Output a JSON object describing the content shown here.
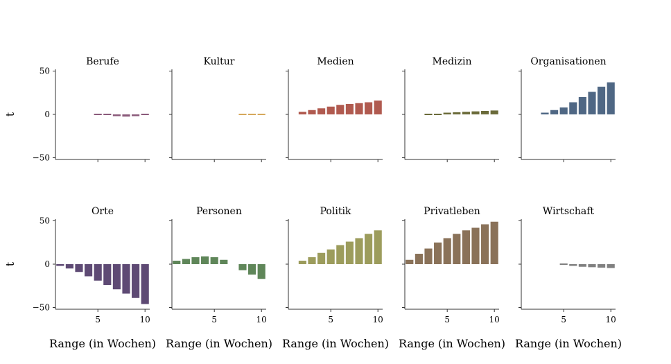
{
  "chart_data": {
    "type": "bar",
    "layout": "small-multiples",
    "xlabel": "Range (in Wochen)",
    "ylabel": "t",
    "ylim": [
      -52,
      52
    ],
    "xlim": [
      0.5,
      10.5
    ],
    "yticks": [
      -50,
      0,
      50
    ],
    "xticks": [
      5,
      10
    ],
    "grid": false,
    "facets": [
      {
        "name": "Berufe",
        "color": "#8a5a7a",
        "x": [
          5,
          6,
          7,
          8,
          9,
          10
        ],
        "values": [
          -1,
          -1.5,
          -2,
          -2.5,
          -2,
          -1.5
        ]
      },
      {
        "name": "Kultur",
        "color": "#d6a85c",
        "x": [
          8,
          9,
          10
        ],
        "values": [
          -1,
          -1,
          -1
        ]
      },
      {
        "name": "Medien",
        "color": "#b05a4f",
        "x": [
          2,
          3,
          4,
          5,
          6,
          7,
          8,
          9,
          10
        ],
        "values": [
          3,
          5,
          7,
          9,
          11,
          12,
          13,
          14,
          16
        ]
      },
      {
        "name": "Medizin",
        "color": "#6b6b3a",
        "x": [
          3,
          4,
          5,
          6,
          7,
          8,
          9,
          10
        ],
        "values": [
          1,
          1.5,
          2,
          2.5,
          3,
          3.5,
          4,
          4.5
        ]
      },
      {
        "name": "Organisationen",
        "color": "#4f6784",
        "x": [
          3,
          4,
          5,
          6,
          7,
          8,
          9,
          10
        ],
        "values": [
          2,
          5,
          8,
          14,
          20,
          26,
          32,
          37
        ]
      },
      {
        "name": "Orte",
        "color": "#5e4a74",
        "x": [
          1,
          2,
          3,
          4,
          5,
          6,
          7,
          8,
          9,
          10
        ],
        "values": [
          -2,
          -5,
          -9,
          -14,
          -19,
          -24,
          -29,
          -34,
          -39,
          -46
        ]
      },
      {
        "name": "Personen",
        "color": "#5f8659",
        "x": [
          1,
          2,
          3,
          4,
          5,
          6,
          8,
          9,
          10
        ],
        "values": [
          4,
          6,
          8,
          9,
          8,
          5,
          -7,
          -12,
          -17
        ]
      },
      {
        "name": "Politik",
        "color": "#9c9c5c",
        "x": [
          2,
          3,
          4,
          5,
          6,
          7,
          8,
          9,
          10
        ],
        "values": [
          4,
          8,
          13,
          17,
          22,
          26,
          30,
          35,
          39
        ]
      },
      {
        "name": "Privatleben",
        "color": "#8a7259",
        "x": [
          1,
          2,
          3,
          4,
          5,
          6,
          7,
          8,
          9,
          10
        ],
        "values": [
          5,
          12,
          18,
          25,
          30,
          35,
          39,
          42,
          46,
          49
        ]
      },
      {
        "name": "Wirtschaft",
        "color": "#808080",
        "x": [
          5,
          6,
          7,
          8,
          9,
          10
        ],
        "values": [
          -1,
          -2,
          -3,
          -3.5,
          -4,
          -4.5
        ]
      }
    ]
  }
}
